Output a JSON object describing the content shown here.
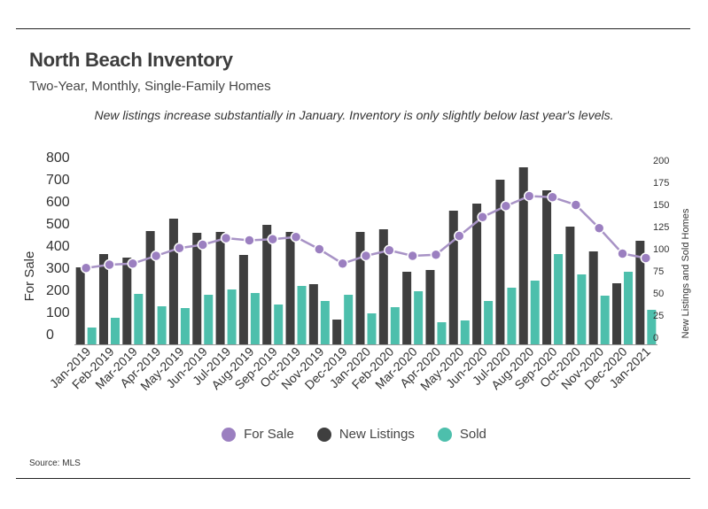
{
  "header": {
    "title": "North Beach Inventory",
    "subtitle": "Two-Year, Monthly, Single-Family Homes",
    "annotation": "New listings increase substantially in January. Inventory is only slightly below last year's levels."
  },
  "footer": {
    "source": "Source:  MLS"
  },
  "colors": {
    "for_sale": "#9b7fc0",
    "for_sale_line": "#a893c6",
    "new_listings": "#3f3f3f",
    "sold": "#4dbfac"
  },
  "chart_data": {
    "type": "bar+line",
    "categories": [
      "Jan-2019",
      "Feb-2019",
      "Mar-2019",
      "Apr-2019",
      "May-2019",
      "Jun-2019",
      "Jul-2019",
      "Aug-2019",
      "Sep-2019",
      "Oct-2019",
      "Nov-2019",
      "Dec-2019",
      "Jan-2020",
      "Feb-2020",
      "Mar-2020",
      "Apr-2020",
      "May-2020",
      "Jun-2020",
      "Jul-2020",
      "Aug-2020",
      "Sep-2020",
      "Oct-2020",
      "Nov-2020",
      "Dec-2020",
      "Jan-2021"
    ],
    "series": [
      {
        "name": "For Sale",
        "type": "line",
        "axis": "left",
        "values": [
          345,
          360,
          365,
          400,
          435,
          450,
          480,
          470,
          475,
          485,
          430,
          365,
          400,
          425,
          400,
          405,
          490,
          575,
          625,
          670,
          665,
          630,
          525,
          410,
          390
        ]
      },
      {
        "name": "New Listings",
        "type": "bar",
        "axis": "right",
        "values": [
          87,
          102,
          98,
          128,
          142,
          126,
          127,
          101,
          135,
          127,
          68,
          28,
          127,
          130,
          82,
          84,
          151,
          159,
          186,
          200,
          174,
          133,
          105,
          69,
          117
        ]
      },
      {
        "name": "Sold",
        "type": "bar",
        "axis": "right",
        "values": [
          19,
          30,
          57,
          43,
          41,
          56,
          62,
          58,
          45,
          66,
          49,
          56,
          35,
          42,
          60,
          25,
          27,
          49,
          64,
          72,
          102,
          79,
          55,
          82,
          39
        ]
      }
    ],
    "left_axis": {
      "label": "For Sale",
      "ticks": [
        "0",
        "100",
        "200",
        "300",
        "400",
        "500",
        "600",
        "700",
        "800"
      ],
      "range": [
        0,
        800
      ]
    },
    "right_axis": {
      "label": "New Listings and Sold Homes",
      "ticks": [
        "0",
        "25",
        "50",
        "75",
        "100",
        "125",
        "150",
        "175",
        "200"
      ],
      "range": [
        0,
        200
      ]
    },
    "legend": [
      "For Sale",
      "New Listings",
      "Sold"
    ],
    "legend_position": "bottom",
    "grid": false
  }
}
